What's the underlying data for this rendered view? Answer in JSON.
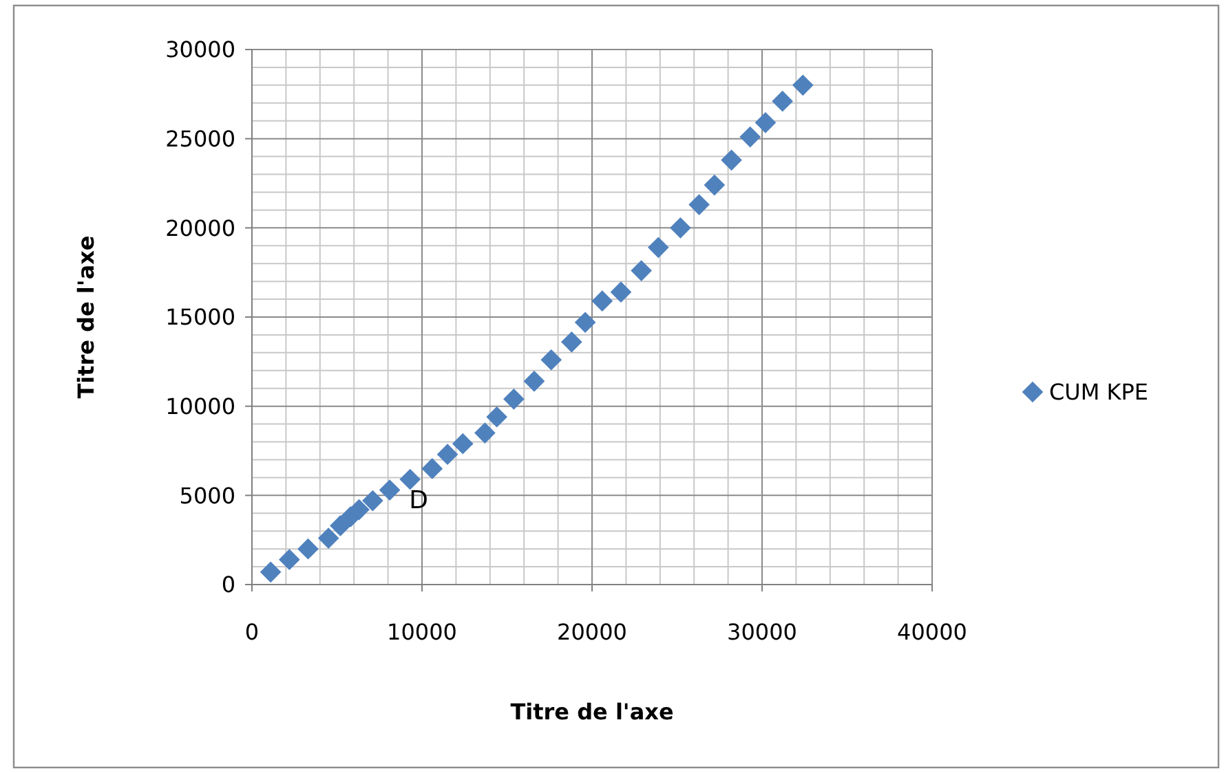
{
  "chart_data": {
    "type": "scatter",
    "xlabel": "Titre de l'axe",
    "ylabel": "Titre de l'axe",
    "xlim": [
      0,
      40000
    ],
    "ylim": [
      0,
      30000
    ],
    "xticks": [
      0,
      10000,
      20000,
      30000,
      40000
    ],
    "yticks": [
      0,
      5000,
      10000,
      15000,
      20000,
      25000,
      30000
    ],
    "grid": true,
    "legend": "right",
    "marker": "diamond",
    "annotations": [
      "D"
    ],
    "series": [
      {
        "name": "CUM KPE",
        "color": "#4f81bd",
        "x": [
          1100,
          2200,
          3300,
          4500,
          5200,
          5800,
          6300,
          7100,
          8100,
          9300,
          10600,
          11500,
          12400,
          13700,
          14400,
          15400,
          16600,
          17600,
          18800,
          19600,
          20600,
          21700,
          22900,
          23900,
          25200,
          26300,
          27200,
          28200,
          29300,
          30200,
          31200,
          32400
        ],
        "values": [
          700,
          1400,
          2000,
          2600,
          3300,
          3800,
          4200,
          4700,
          5300,
          5900,
          6500,
          7300,
          7900,
          8500,
          9400,
          10400,
          11400,
          12600,
          13600,
          14700,
          15900,
          16400,
          17600,
          18900,
          20000,
          21300,
          22400,
          23800,
          25100,
          25900,
          27100,
          28000
        ]
      }
    ]
  }
}
